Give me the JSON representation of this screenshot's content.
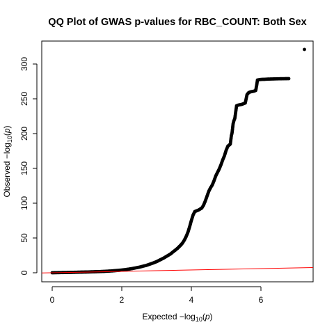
{
  "chart_data": {
    "type": "scatter",
    "title": "QQ Plot of GWAS p-values for RBC_COUNT: Both Sex",
    "xlabel": {
      "prefix": "Expected  −log",
      "sub": "10",
      "suffix": "(",
      "var": "p",
      "close": ")"
    },
    "ylabel": {
      "prefix": "Observed  −log",
      "sub": "10",
      "suffix": "(",
      "var": "p",
      "close": ")"
    },
    "xlim": [
      -0.3,
      7.5
    ],
    "ylim": [
      -13,
      333
    ],
    "x_ticks": [
      "0",
      "2",
      "4",
      "6"
    ],
    "x_tick_values": [
      0,
      2,
      4,
      6
    ],
    "y_ticks": [
      "0",
      "50",
      "100",
      "150",
      "200",
      "250",
      "300"
    ],
    "y_tick_values": [
      0,
      50,
      100,
      150,
      200,
      250,
      300
    ],
    "grid": false,
    "legend": "none",
    "reference_line": {
      "intercept": 0,
      "slope": 1,
      "color": "#ff0000"
    },
    "point_color": "#000000",
    "points": [
      [
        0.0,
        0.0
      ],
      [
        0.2,
        0.2
      ],
      [
        0.5,
        0.5
      ],
      [
        0.8,
        0.9
      ],
      [
        1.0,
        1.1
      ],
      [
        1.3,
        1.6
      ],
      [
        1.5,
        2.0
      ],
      [
        1.7,
        2.6
      ],
      [
        1.9,
        3.4
      ],
      [
        2.1,
        4.5
      ],
      [
        2.3,
        6.0
      ],
      [
        2.5,
        8.0
      ],
      [
        2.7,
        10.5
      ],
      [
        2.9,
        14.0
      ],
      [
        3.0,
        16.0
      ],
      [
        3.1,
        18.5
      ],
      [
        3.2,
        21.0
      ],
      [
        3.3,
        24.0
      ],
      [
        3.4,
        27.0
      ],
      [
        3.5,
        31.0
      ],
      [
        3.6,
        35.0
      ],
      [
        3.7,
        40.0
      ],
      [
        3.75,
        43.0
      ],
      [
        3.8,
        47.0
      ],
      [
        3.85,
        52.0
      ],
      [
        3.9,
        58.0
      ],
      [
        3.95,
        66.0
      ],
      [
        4.0,
        75.0
      ],
      [
        4.05,
        83.0
      ],
      [
        4.1,
        88.0
      ],
      [
        4.15,
        89.0
      ],
      [
        4.2,
        90.0
      ],
      [
        4.25,
        91.5
      ],
      [
        4.3,
        93.0
      ],
      [
        4.35,
        97.0
      ],
      [
        4.4,
        103.0
      ],
      [
        4.45,
        110.0
      ],
      [
        4.5,
        117.0
      ],
      [
        4.55,
        122.0
      ],
      [
        4.6,
        126.0
      ],
      [
        4.65,
        132.0
      ],
      [
        4.7,
        139.0
      ],
      [
        4.75,
        144.0
      ],
      [
        4.8,
        149.0
      ],
      [
        4.85,
        155.0
      ],
      [
        4.9,
        162.0
      ],
      [
        4.95,
        168.0
      ],
      [
        5.0,
        176.0
      ],
      [
        5.05,
        182.0
      ],
      [
        5.1,
        184.0
      ],
      [
        5.12,
        185.0
      ],
      [
        5.15,
        197.0
      ],
      [
        5.17,
        201.0
      ],
      [
        5.2,
        214.0
      ],
      [
        5.22,
        218.0
      ],
      [
        5.25,
        222.0
      ],
      [
        5.3,
        240.0
      ],
      [
        5.35,
        241.0
      ],
      [
        5.4,
        241.5
      ],
      [
        5.45,
        242.0
      ],
      [
        5.5,
        243.0
      ],
      [
        5.55,
        244.0
      ],
      [
        5.6,
        256.0
      ],
      [
        5.65,
        259.0
      ],
      [
        5.7,
        260.0
      ],
      [
        5.75,
        260.5
      ],
      [
        5.8,
        261.0
      ],
      [
        5.85,
        262.0
      ],
      [
        5.88,
        270.0
      ],
      [
        5.9,
        277.0
      ],
      [
        5.95,
        277.5
      ],
      [
        6.0,
        277.8
      ],
      [
        6.05,
        278.0
      ],
      [
        6.1,
        278.0
      ],
      [
        6.15,
        278.2
      ],
      [
        6.25,
        278.4
      ],
      [
        6.4,
        278.6
      ],
      [
        6.55,
        278.8
      ],
      [
        6.8,
        279.0
      ],
      [
        7.25,
        321.0
      ]
    ]
  }
}
